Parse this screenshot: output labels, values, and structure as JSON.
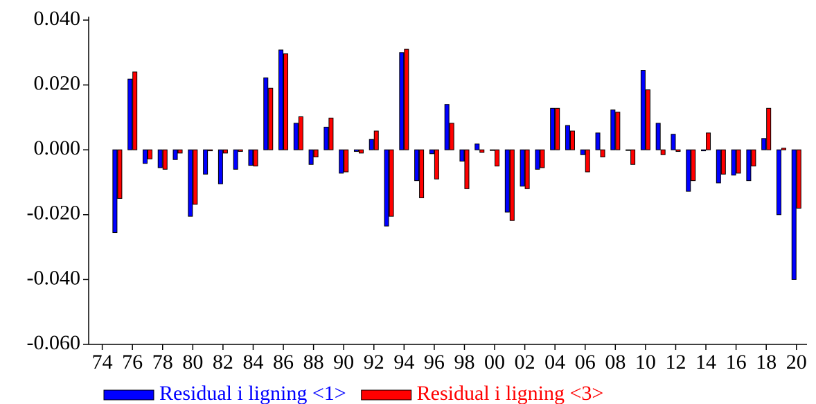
{
  "chart_data": {
    "type": "bar",
    "x": [
      1975,
      1976,
      1977,
      1978,
      1979,
      1980,
      1981,
      1982,
      1983,
      1984,
      1985,
      1986,
      1987,
      1988,
      1989,
      1990,
      1991,
      1992,
      1993,
      1994,
      1995,
      1996,
      1997,
      1998,
      1999,
      2000,
      2001,
      2002,
      2003,
      2004,
      2005,
      2006,
      2007,
      2008,
      2009,
      2010,
      2011,
      2012,
      2013,
      2014,
      2015,
      2016,
      2017,
      2018,
      2019,
      2020
    ],
    "series": [
      {
        "name": "Residual i ligning <1>",
        "color": "#0000ff",
        "values": [
          -0.0255,
          0.0218,
          -0.0042,
          -0.0055,
          -0.003,
          -0.0205,
          -0.0075,
          -0.0105,
          -0.006,
          -0.0048,
          0.0222,
          0.0308,
          0.0082,
          -0.0045,
          0.007,
          -0.0072,
          -0.0005,
          0.0032,
          -0.0235,
          0.03,
          -0.0095,
          -0.0012,
          0.014,
          -0.0035,
          0.0018,
          -0.0002,
          -0.0192,
          -0.0112,
          -0.006,
          0.0128,
          0.0075,
          -0.0015,
          0.0052,
          0.0123,
          -0.0002,
          0.0245,
          0.0082,
          0.0048,
          -0.0128,
          -0.0003,
          -0.0102,
          -0.0078,
          -0.0095,
          0.0035,
          -0.02,
          -0.04
        ]
      },
      {
        "name": "Residual i ligning <3>",
        "color": "#ff0000",
        "values": [
          -0.015,
          0.024,
          -0.0028,
          -0.006,
          -0.001,
          -0.0168,
          -0.0003,
          -0.001,
          -0.0005,
          -0.005,
          0.019,
          0.0296,
          0.0102,
          -0.0022,
          0.0098,
          -0.0068,
          -0.001,
          0.0058,
          -0.0205,
          0.031,
          -0.0148,
          -0.009,
          0.0082,
          -0.012,
          -0.0008,
          -0.005,
          -0.0218,
          -0.012,
          -0.0055,
          0.0128,
          0.0058,
          -0.0068,
          -0.0022,
          0.0116,
          -0.0045,
          0.0185,
          -0.0015,
          -0.0005,
          -0.0095,
          0.0052,
          -0.0075,
          -0.0072,
          -0.005,
          0.0128,
          0.0005,
          -0.018
        ]
      }
    ],
    "xlim": [
      1973.1,
      2020.7
    ],
    "xticks": [
      {
        "value": 1974,
        "label": "74"
      },
      {
        "value": 1976,
        "label": "76"
      },
      {
        "value": 1978,
        "label": "78"
      },
      {
        "value": 1980,
        "label": "80"
      },
      {
        "value": 1982,
        "label": "82"
      },
      {
        "value": 1984,
        "label": "84"
      },
      {
        "value": 1986,
        "label": "86"
      },
      {
        "value": 1988,
        "label": "88"
      },
      {
        "value": 1990,
        "label": "90"
      },
      {
        "value": 1992,
        "label": "92"
      },
      {
        "value": 1994,
        "label": "94"
      },
      {
        "value": 1996,
        "label": "96"
      },
      {
        "value": 1998,
        "label": "98"
      },
      {
        "value": 2000,
        "label": "00"
      },
      {
        "value": 2002,
        "label": "02"
      },
      {
        "value": 2004,
        "label": "04"
      },
      {
        "value": 2006,
        "label": "06"
      },
      {
        "value": 2008,
        "label": "08"
      },
      {
        "value": 2010,
        "label": "10"
      },
      {
        "value": 2012,
        "label": "12"
      },
      {
        "value": 2014,
        "label": "14"
      },
      {
        "value": 2016,
        "label": "16"
      },
      {
        "value": 2018,
        "label": "18"
      },
      {
        "value": 2020,
        "label": "20"
      }
    ],
    "ylim": [
      -0.06,
      0.04
    ],
    "yticks": [
      {
        "value": -0.06,
        "label": "-0.060"
      },
      {
        "value": -0.04,
        "label": "-0.040"
      },
      {
        "value": -0.02,
        "label": "-0.020"
      },
      {
        "value": 0,
        "label": "0.000"
      },
      {
        "value": 0.02,
        "label": "0.020"
      },
      {
        "value": 0.04,
        "label": "0.040"
      }
    ],
    "legend": "bottom"
  }
}
